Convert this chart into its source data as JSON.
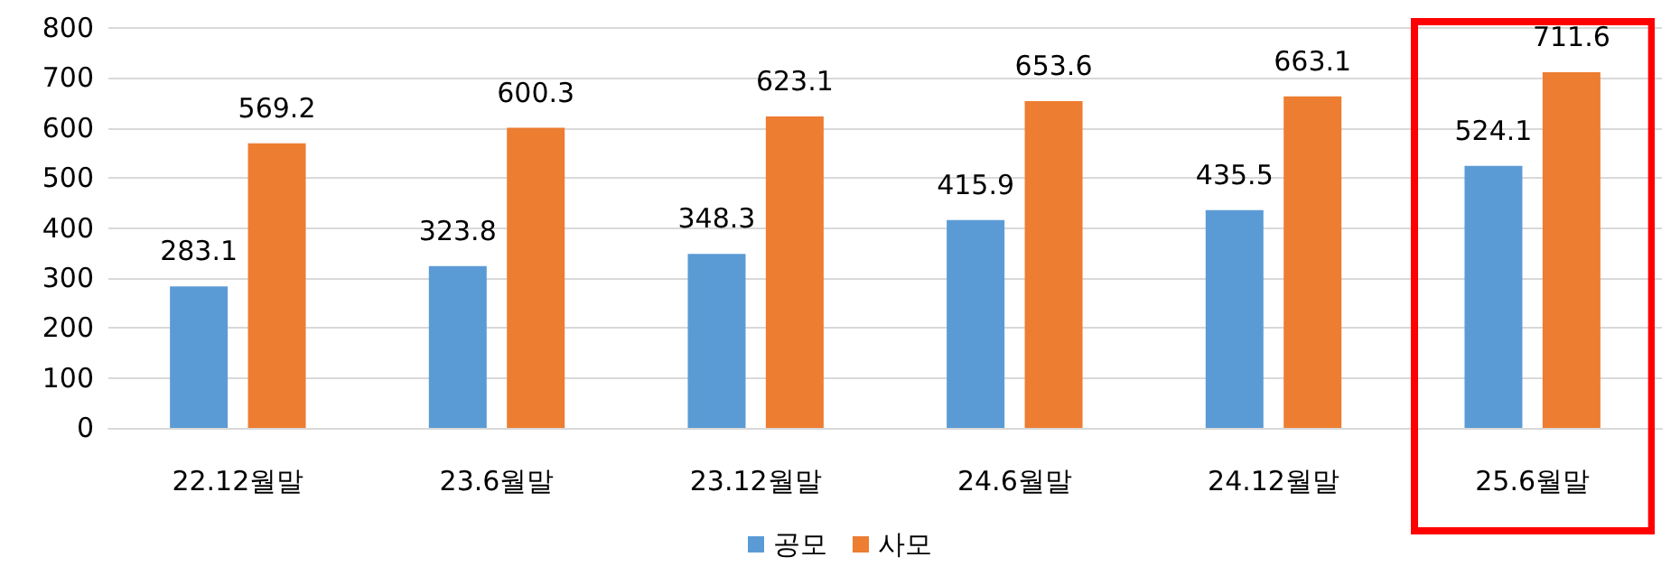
{
  "chart_data": {
    "type": "bar",
    "categories": [
      "22.12월말",
      "23.6월말",
      "23.12월말",
      "24.6월말",
      "24.12월말",
      "25.6월말"
    ],
    "series": [
      {
        "name": "공모",
        "color": "#5b9bd5",
        "values": [
          283.1,
          323.8,
          348.3,
          415.9,
          435.5,
          524.1
        ]
      },
      {
        "name": "사모",
        "color": "#ed7d31",
        "values": [
          569.2,
          600.3,
          623.1,
          653.6,
          663.1,
          711.6
        ]
      }
    ],
    "ylim": [
      0,
      800
    ],
    "yticks": [
      0,
      100,
      200,
      300,
      400,
      500,
      600,
      700,
      800
    ],
    "grid": "y",
    "legend": "bottom",
    "data_labels": true
  }
}
